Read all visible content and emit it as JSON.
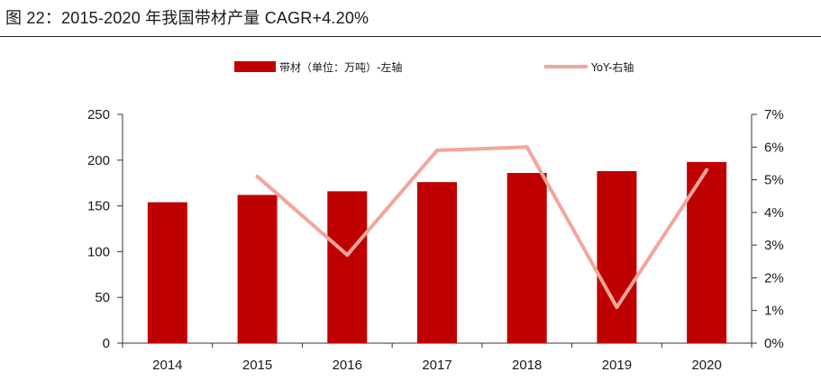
{
  "header": {
    "title": "图 22：2015-2020 年我国带材产量 CAGR+4.20%"
  },
  "colors": {
    "bar": "#c00000",
    "line": "#f4a59a",
    "axis": "#333333"
  },
  "chart_data": {
    "type": "bar",
    "title": "",
    "categories": [
      "2014",
      "2015",
      "2016",
      "2017",
      "2018",
      "2019",
      "2020"
    ],
    "series": [
      {
        "name": "带材（单位：万吨）-左轴",
        "type": "bar",
        "axis": "left",
        "values": [
          154,
          162,
          166,
          176,
          186,
          188,
          198
        ]
      },
      {
        "name": "YoY-右轴",
        "type": "line",
        "axis": "right",
        "values": [
          null,
          5.1,
          2.7,
          5.9,
          6.0,
          1.1,
          5.3
        ]
      }
    ],
    "y_left": {
      "min": 0,
      "max": 250,
      "ticks": [
        "0",
        "50",
        "100",
        "150",
        "200",
        "250"
      ]
    },
    "y_right": {
      "min": 0,
      "max": 7,
      "unit": "%",
      "ticks": [
        "0%",
        "1%",
        "2%",
        "3%",
        "4%",
        "5%",
        "6%",
        "7%"
      ]
    },
    "grid": false,
    "legend_position": "top"
  }
}
